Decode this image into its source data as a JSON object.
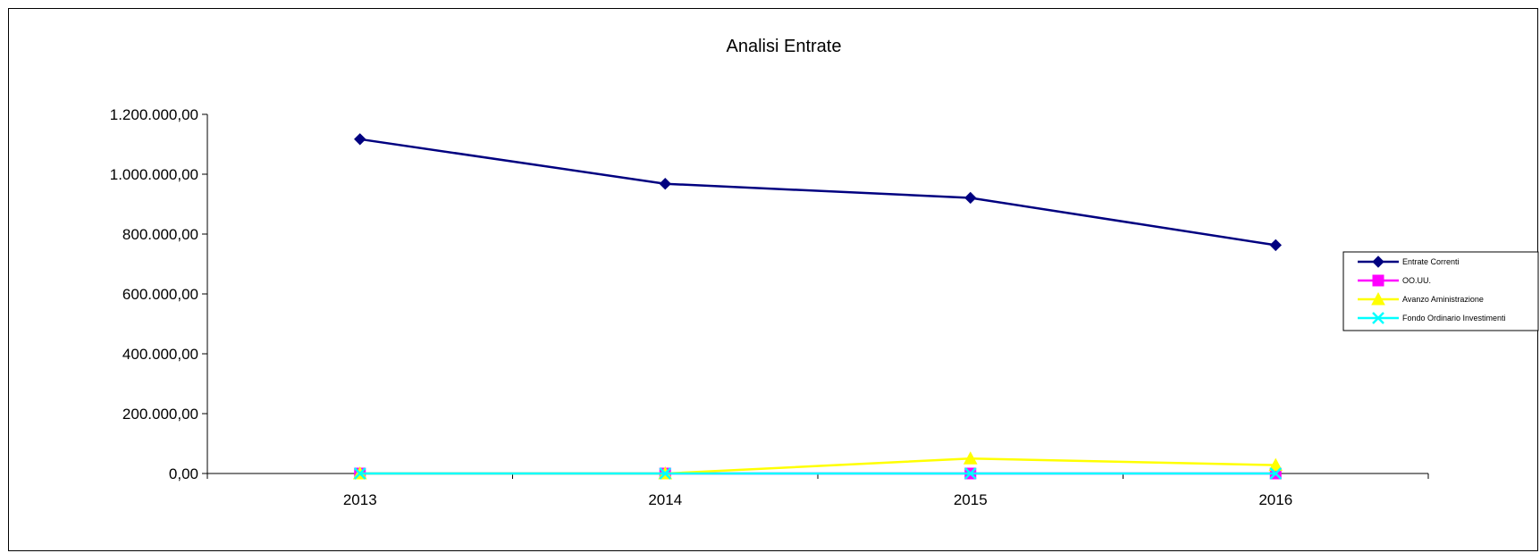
{
  "chart_data": {
    "type": "line",
    "title": "Analisi Entrate",
    "xlabel": "",
    "ylabel": "",
    "categories": [
      "2013",
      "2014",
      "2015",
      "2016"
    ],
    "ylim": [
      0,
      1200000
    ],
    "yticks": [
      0,
      200000,
      400000,
      600000,
      800000,
      1000000,
      1200000
    ],
    "ytick_labels": [
      "0,00",
      "200.000,00",
      "400.000,00",
      "600.000,00",
      "800.000,00",
      "1.000.000,00",
      "1.200.000,00"
    ],
    "grid": false,
    "legend_position": "right",
    "series": [
      {
        "name": "Entrate Correnti",
        "values": [
          1117000,
          968000,
          921000,
          763000
        ],
        "color": "#000080",
        "marker": "diamond"
      },
      {
        "name": "OO.UU.",
        "values": [
          0,
          0,
          0,
          0
        ],
        "color": "#ff00ff",
        "marker": "square"
      },
      {
        "name": "Avanzo Aministrazione",
        "values": [
          0,
          0,
          50000,
          28000
        ],
        "color": "#ffff00",
        "marker": "triangle"
      },
      {
        "name": "Fondo Ordinario Investimenti",
        "values": [
          0,
          0,
          0,
          0
        ],
        "color": "#00ffff",
        "marker": "x"
      }
    ]
  }
}
